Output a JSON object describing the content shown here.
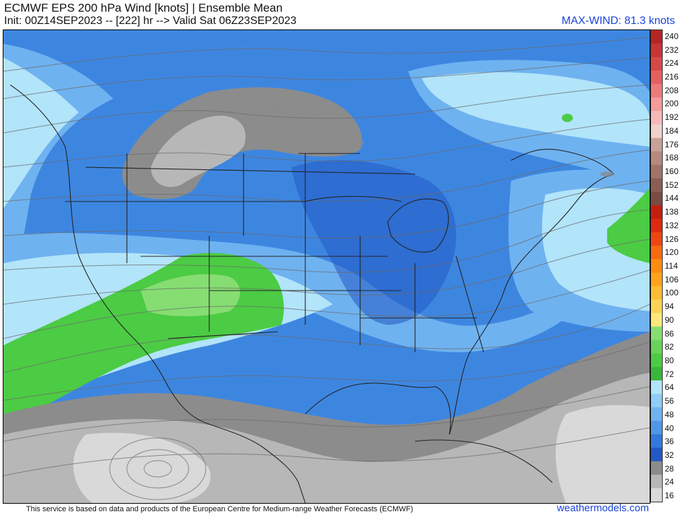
{
  "header": {
    "title": "ECMWF EPS 200 hPa Wind [knots] | Ensemble Mean",
    "subtitle": "Init: 00Z14SEP2023 -- [222] hr --> Valid Sat 06Z23SEP2023",
    "max_wind": "MAX-WIND: 81.3 knots"
  },
  "colorbar": {
    "labels": [
      "240",
      "232",
      "224",
      "216",
      "208",
      "200",
      "192",
      "184",
      "176",
      "168",
      "160",
      "152",
      "144",
      "138",
      "132",
      "126",
      "120",
      "114",
      "106",
      "100",
      "94",
      "90",
      "86",
      "82",
      "80",
      "72",
      "64",
      "56",
      "48",
      "40",
      "36",
      "32",
      "28",
      "24",
      "16"
    ],
    "colors": [
      "#b62525",
      "#c93535",
      "#d84848",
      "#e46060",
      "#ee7b7b",
      "#f49a9a",
      "#f5b8b8",
      "#efd2cc",
      "#c9a197",
      "#b48a7f",
      "#a07469",
      "#8a5e53",
      "#7a4b41",
      "#c41f0e",
      "#dd2a10",
      "#ed4612",
      "#f86a10",
      "#fb8c12",
      "#fca31b",
      "#fdbb36",
      "#fdd354",
      "#fde77a",
      "#86dd72",
      "#6ad35a",
      "#4ccb44",
      "#3ab73a",
      "#b2e4fa",
      "#8fccf7",
      "#6fb2f0",
      "#4f98e8",
      "#3378dc",
      "#2259c5",
      "#8c8c8c",
      "#b7b7b7",
      "#d9d9d9"
    ]
  },
  "map": {
    "colors": {
      "base": "#3d86e0",
      "light_blue": "#b2e4fa",
      "mid_blue": "#6fb2f0",
      "deep_blue": "#2259c5",
      "green": "#4ccb44",
      "light_green": "#86dd72",
      "gray": "#8c8c8c",
      "light_gray": "#b7b7b7",
      "lighter_gray": "#d9d9d9"
    }
  },
  "footer": {
    "disclaimer": "This service is based on data and products of the European Centre for Medium-range Weather Forecasts (ECMWF)",
    "brand": "weathermodels.com"
  }
}
